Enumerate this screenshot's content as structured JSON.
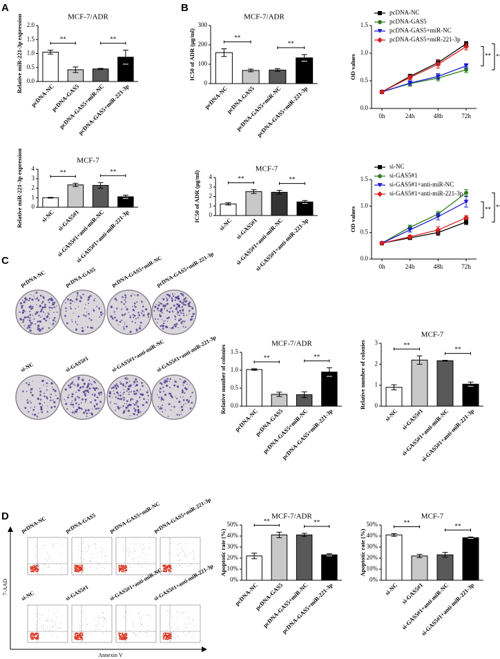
{
  "panels": [
    "A",
    "B",
    "C",
    "D"
  ],
  "colony_labels": [
    "pcDNA-NC",
    "pcDNA-GAS5",
    "pcDNA-GAS5+miR-NC",
    "pcDNA-GAS5+miR-221-3p",
    "si-NC",
    "si-GAS5#1",
    "si-GAS5#1+anti-miR-NC",
    "si-GAS5#1+anti-miR-221-3p"
  ],
  "flow_labels": [
    "pcDNA-NC",
    "pcDNA-GAS5",
    "pcDNA-GAS5+miR-NC",
    "pcDNA-GAS5+miR-221-3p",
    "si-NC",
    "si-GAS5#1",
    "si-GAS5#1+anti-miR-NC",
    "si-GAS5#1+anti-miR-221-3p"
  ],
  "flow_axes": {
    "y": "7-AAD",
    "x": "Annexin V"
  },
  "chart_data": [
    {
      "type": "bar",
      "title": "MCF-7/ADR",
      "ylabel": "Relative miR-221-3p expression",
      "categories": [
        "pcDNA-NC",
        "pcDNA-GAS5",
        "pcDNA-GAS5+miR-NC",
        "pcDNA-GAS5+miR-221-3p"
      ],
      "values": [
        1.05,
        0.42,
        0.45,
        0.87
      ],
      "errors": [
        0.07,
        0.1,
        0.02,
        0.25
      ],
      "colors": [
        "#ffffff",
        "#c8c8c8",
        "#595959",
        "#000000"
      ],
      "ylim": [
        0,
        2
      ],
      "yticks": [
        {
          "value": 0,
          "label": "0.0"
        },
        0.5,
        {
          "value": 1,
          "label": "1.0"
        },
        1.5,
        {
          "value": 2,
          "label": "2.0"
        }
      ],
      "annotations": [
        "**",
        "**"
      ]
    },
    {
      "type": "bar",
      "title": "MCF-7",
      "ylabel": "Relative miR-221-3p expression",
      "categories": [
        "si-NC",
        "si-GAS5#1",
        "si-GAS5#1+anti-miR-NC",
        "si-GAS5#1+anti-miR-221-3p"
      ],
      "values": [
        1.0,
        2.35,
        2.3,
        1.1
      ],
      "errors": [
        0.04,
        0.17,
        0.3,
        0.17
      ],
      "colors": [
        "#ffffff",
        "#c8c8c8",
        "#595959",
        "#000000"
      ],
      "ylim": [
        0,
        4
      ],
      "yticks": [
        0,
        1,
        2,
        3,
        4
      ],
      "annotations": [
        "**",
        "**"
      ]
    },
    {
      "type": "bar",
      "title": "MCF-7/ADR",
      "ylabel": "IC50 of ADR (μg/ml)",
      "categories": [
        "pcDNA-NC",
        "pcDNA-GAS5",
        "pcDNA-GAS5+miR-NC",
        "pcDNA-GAS5+miR-221-3p"
      ],
      "values": [
        160,
        68,
        70,
        133
      ],
      "errors": [
        20,
        7,
        7,
        17
      ],
      "colors": [
        "#ffffff",
        "#c8c8c8",
        "#595959",
        "#000000"
      ],
      "ylim": [
        0,
        300
      ],
      "yticks": [
        0,
        100,
        200,
        300
      ],
      "annotations": [
        "**",
        "**"
      ]
    },
    {
      "type": "bar",
      "title": "MCF-7",
      "ylabel": "IC50 of ADR (μg/ml)",
      "categories": [
        "si-NC",
        "si-GAS5#1",
        "si-GAS5#1+anti-miR-NC",
        "si-GAS5#1+anti-miR-221-3p"
      ],
      "values": [
        1.22,
        2.52,
        2.45,
        1.43
      ],
      "errors": [
        0.12,
        0.2,
        0.2,
        0.15
      ],
      "colors": [
        "#ffffff",
        "#c8c8c8",
        "#333333",
        "#000000"
      ],
      "ylim": [
        0,
        4
      ],
      "yticks": [
        0,
        1,
        2,
        3,
        4
      ],
      "annotations": [
        "**",
        "**"
      ]
    },
    {
      "type": "line",
      "ylabel": "OD values",
      "categories": [
        "0h",
        "24h",
        "48h",
        "72h"
      ],
      "series": [
        {
          "name": "pcDNA-NC",
          "color": "#000000",
          "marker": "square",
          "values": [
            0.3,
            0.58,
            0.83,
            1.17
          ],
          "errors": [
            0.02,
            0.04,
            0.05,
            0.04
          ]
        },
        {
          "name": "pcDNA-GAS5",
          "color": "#2e7d1e",
          "marker": "circle",
          "values": [
            0.3,
            0.45,
            0.55,
            0.7
          ],
          "errors": [
            0.02,
            0.05,
            0.05,
            0.05
          ]
        },
        {
          "name": "pcDNA-GAS5+miR-NC",
          "color": "#1a1ad6",
          "marker": "triangle-down",
          "values": [
            0.3,
            0.46,
            0.58,
            0.77
          ],
          "errors": [
            0.02,
            0.04,
            0.05,
            0.04
          ]
        },
        {
          "name": "pcDNA-GAS5+miR-221-3p",
          "color": "#d62020",
          "marker": "diamond",
          "values": [
            0.3,
            0.56,
            0.8,
            1.12
          ],
          "errors": [
            0.02,
            0.04,
            0.07,
            0.06
          ]
        }
      ],
      "ylim": [
        0,
        1.5
      ],
      "yticks": [
        {
          "value": 0,
          "label": "0.0"
        },
        0.5,
        {
          "value": 1,
          "label": "1.0"
        },
        1.5
      ],
      "annotations": [
        "**",
        "**"
      ]
    },
    {
      "type": "line",
      "ylabel": "OD values",
      "categories": [
        "0h",
        "24h",
        "48h",
        "72h"
      ],
      "series": [
        {
          "name": "si-NC",
          "color": "#000000",
          "marker": "square",
          "values": [
            0.3,
            0.4,
            0.5,
            0.7
          ],
          "errors": [
            0.02,
            0.03,
            0.05,
            0.05
          ]
        },
        {
          "name": "si-GAS5#1",
          "color": "#2e7d1e",
          "marker": "circle",
          "values": [
            0.3,
            0.6,
            0.85,
            1.25
          ],
          "errors": [
            0.02,
            0.04,
            0.05,
            0.06
          ]
        },
        {
          "name": "si-GAS5#1+anti-miR-NC",
          "color": "#1a1ad6",
          "marker": "triangle-down",
          "values": [
            0.3,
            0.55,
            0.8,
            1.08
          ],
          "errors": [
            0.02,
            0.04,
            0.06,
            0.1
          ]
        },
        {
          "name": "si-GAS5#1+anti-miR-221-3p",
          "color": "#d62020",
          "marker": "diamond",
          "values": [
            0.3,
            0.42,
            0.55,
            0.78
          ],
          "errors": [
            0.02,
            0.03,
            0.06,
            0.04
          ]
        }
      ],
      "ylim": [
        0,
        1.5
      ],
      "yticks": [
        {
          "value": 0,
          "label": "0.0"
        },
        0.5,
        {
          "value": 1,
          "label": "1.0"
        },
        1.5
      ],
      "annotations": [
        "**",
        "**"
      ]
    },
    {
      "type": "bar",
      "title": "MCF-7/ADR",
      "ylabel": "Relative number of colonies",
      "categories": [
        "pcDNA-NC",
        "pcDNA-GAS5",
        "pcDNA-GAS5+miR-NC",
        "pcDNA-GAS5+miR-221-3p"
      ],
      "values": [
        1.02,
        0.33,
        0.32,
        0.95
      ],
      "errors": [
        0.02,
        0.06,
        0.08,
        0.12
      ],
      "colors": [
        "#ffffff",
        "#c8c8c8",
        "#595959",
        "#000000"
      ],
      "ylim": [
        0,
        1.5
      ],
      "yticks": [
        {
          "value": 0,
          "label": "0.0"
        },
        0.5,
        {
          "value": 1,
          "label": "1.0"
        },
        1.5
      ],
      "annotations": [
        "**",
        "**"
      ]
    },
    {
      "type": "bar",
      "title": "MCF-7",
      "ylabel": "Relative number of colonies",
      "categories": [
        "si-NC",
        "si-GAS5#1",
        "si-GAS5#1+anti-miR-NC",
        "si-GAS5#1+anti-miR-221-3p"
      ],
      "values": [
        0.9,
        2.2,
        2.17,
        1.05
      ],
      "errors": [
        0.12,
        0.2,
        0.02,
        0.1
      ],
      "colors": [
        "#ffffff",
        "#c8c8c8",
        "#595959",
        "#000000"
      ],
      "ylim": [
        0,
        3
      ],
      "yticks": [
        0,
        1,
        2,
        3
      ],
      "annotations": [
        "**",
        "**"
      ]
    },
    {
      "type": "bar",
      "title": "MCF-7/ADR",
      "ylabel": "Apoptotic rate (%)",
      "categories": [
        "pcDNA-NC",
        "pcDNA-GAS5",
        "pcDNA-GAS5+miR-NC",
        "pcDNA-GAS5+miR-221-3p"
      ],
      "values": [
        22,
        41,
        41,
        23
      ],
      "errors": [
        2.5,
        2.5,
        1.5,
        1
      ],
      "colors": [
        "#ffffff",
        "#c8c8c8",
        "#595959",
        "#000000"
      ],
      "ylim": [
        0,
        50
      ],
      "yticks": [
        {
          "value": 0,
          "label": "0%"
        },
        {
          "value": 10,
          "label": "10%"
        },
        {
          "value": 20,
          "label": "20%"
        },
        {
          "value": 30,
          "label": "30%"
        },
        {
          "value": 40,
          "label": "40%"
        },
        {
          "value": 50,
          "label": "50%"
        }
      ],
      "annotations": [
        "**",
        "**"
      ]
    },
    {
      "type": "bar",
      "title": "MCF-7",
      "ylabel": "Apoptotic rate (%)",
      "categories": [
        "si-NC",
        "si-GAS5#1",
        "si-GAS5#1+anti-miR-NC",
        "si-GAS5#1+anti-miR-221-3p"
      ],
      "values": [
        41,
        22,
        23,
        38.5
      ],
      "errors": [
        1.2,
        1.5,
        2.2,
        0.7
      ],
      "colors": [
        "#ffffff",
        "#c8c8c8",
        "#595959",
        "#000000"
      ],
      "ylim": [
        0,
        50
      ],
      "yticks": [
        {
          "value": 0,
          "label": "0%"
        },
        {
          "value": 10,
          "label": "10%"
        },
        {
          "value": 20,
          "label": "20%"
        },
        {
          "value": 30,
          "label": "30%"
        },
        {
          "value": 40,
          "label": "40%"
        },
        {
          "value": 50,
          "label": "50%"
        }
      ],
      "annotations": [
        "**",
        "**"
      ]
    }
  ]
}
